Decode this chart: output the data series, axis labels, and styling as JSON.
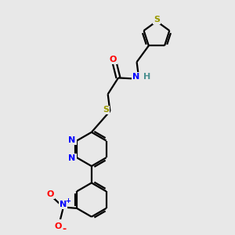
{
  "bg_color": "#e8e8e8",
  "bond_color": "#000000",
  "bond_width": 1.6,
  "atom_colors": {
    "N": "#0000ff",
    "O": "#ff0000",
    "S": "#999900",
    "H": "#4a9090",
    "C": "#000000"
  }
}
